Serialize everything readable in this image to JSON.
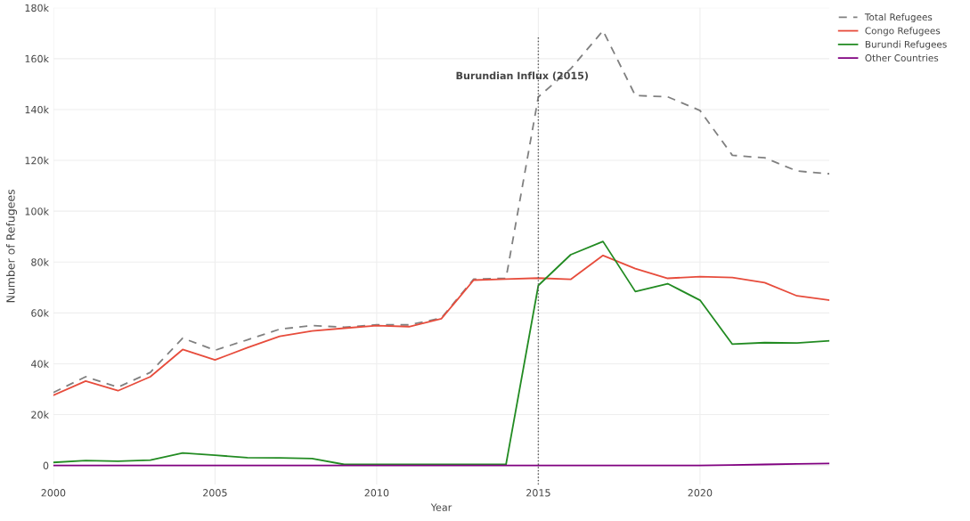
{
  "chart_data": {
    "type": "line",
    "xlabel": "Year",
    "ylabel": "Number of Refugees",
    "x": [
      2000,
      2001,
      2002,
      2003,
      2004,
      2005,
      2006,
      2007,
      2008,
      2009,
      2010,
      2011,
      2012,
      2013,
      2014,
      2015,
      2016,
      2017,
      2018,
      2019,
      2020,
      2021,
      2022,
      2023,
      2024
    ],
    "series": [
      {
        "name": "Total Refugees",
        "color": "#808080",
        "line_style": "dashed",
        "values": [
          28700,
          34900,
          30800,
          36600,
          50100,
          45300,
          49400,
          53600,
          55000,
          54400,
          55300,
          55300,
          58000,
          73300,
          73600,
          145000,
          156000,
          171000,
          145500,
          145000,
          139600,
          122000,
          121000,
          115800,
          114700
        ]
      },
      {
        "name": "Congo Refugees",
        "color": "#e74c3c",
        "line_style": "solid",
        "values": [
          27600,
          33200,
          29400,
          34900,
          45600,
          41500,
          46300,
          50800,
          52900,
          54000,
          55000,
          54600,
          57700,
          72900,
          73300,
          73700,
          73200,
          82600,
          77400,
          73600,
          74300,
          73900,
          71900,
          66700,
          65000
        ]
      },
      {
        "name": "Burundi Refugees",
        "color": "#228b22",
        "line_style": "solid",
        "values": [
          1200,
          1900,
          1700,
          2100,
          4900,
          4000,
          3100,
          3000,
          2700,
          400,
          400,
          400,
          400,
          400,
          400,
          70800,
          82900,
          88100,
          68400,
          71500,
          65000,
          47700,
          48300,
          48200,
          49000
        ]
      },
      {
        "name": "Other Countries",
        "color": "#800080",
        "line_style": "solid",
        "values": [
          0,
          0,
          0,
          0,
          0,
          0,
          0,
          0,
          0,
          0,
          0,
          0,
          0,
          0,
          0,
          0,
          0,
          0,
          0,
          0,
          0,
          200,
          400,
          600,
          800
        ]
      }
    ],
    "xlim": [
      2000,
      2024
    ],
    "xticks": [
      2000,
      2005,
      2010,
      2015,
      2020
    ],
    "ylim": [
      -7500,
      180000
    ],
    "yticks": [
      0,
      {
        "value": 20000,
        "label": "20k"
      },
      {
        "value": 40000,
        "label": "40k"
      },
      {
        "value": 60000,
        "label": "60k"
      },
      {
        "value": 80000,
        "label": "80k"
      },
      {
        "value": 100000,
        "label": "100k"
      },
      {
        "value": 120000,
        "label": "120k"
      },
      {
        "value": 140000,
        "label": "140k"
      },
      {
        "value": 160000,
        "label": "160k"
      },
      {
        "value": 180000,
        "label": "180k"
      }
    ],
    "ref_lines": [
      {
        "axis": "x",
        "value": 2015,
        "label": "Burundian Influx (2015)",
        "color": "#555555",
        "line_style": "dotted"
      }
    ],
    "grid": true,
    "legend": "top right",
    "marker": "none"
  }
}
